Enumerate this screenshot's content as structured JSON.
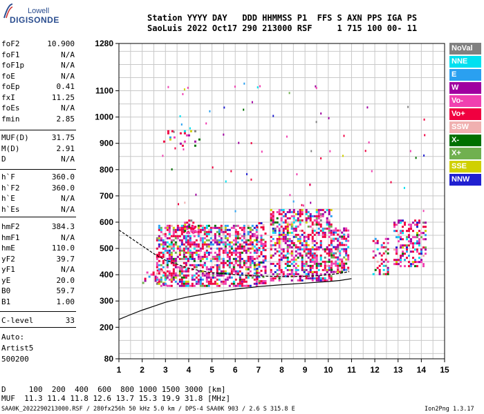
{
  "logo": {
    "line1": "Lowell",
    "line2": "DIGISONDE"
  },
  "header": {
    "line1": "Station YYYY DAY   DDD HHMMSS P1  FFS S AXN PPS IGA PS",
    "line2": "SaoLuis 2022 Oct17 290 213000 RSF     1 715 100 00- 11"
  },
  "params_1": [
    {
      "k": "foF2",
      "v": "10.900"
    },
    {
      "k": "foF1",
      "v": "N/A"
    },
    {
      "k": "foF1p",
      "v": "N/A"
    },
    {
      "k": "foE",
      "v": "N/A"
    },
    {
      "k": "foEp",
      "v": "0.41"
    },
    {
      "k": "fxI",
      "v": "11.25"
    },
    {
      "k": "foEs",
      "v": "N/A"
    },
    {
      "k": "fmin",
      "v": "2.85"
    }
  ],
  "params_2": [
    {
      "k": "MUF(D)",
      "v": "31.75"
    },
    {
      "k": "M(D)",
      "v": "2.91"
    },
    {
      "k": "D",
      "v": "N/A"
    }
  ],
  "params_3": [
    {
      "k": "h`F",
      "v": "360.0"
    },
    {
      "k": "h`F2",
      "v": "360.0"
    },
    {
      "k": "h`E",
      "v": "N/A"
    },
    {
      "k": "h`Es",
      "v": "N/A"
    }
  ],
  "params_4": [
    {
      "k": "hmF2",
      "v": "384.3"
    },
    {
      "k": "hmF1",
      "v": "N/A"
    },
    {
      "k": "hmE",
      "v": "110.0"
    },
    {
      "k": "yF2",
      "v": "39.7"
    },
    {
      "k": "yF1",
      "v": "N/A"
    },
    {
      "k": "yE",
      "v": "20.0"
    },
    {
      "k": "B0",
      "v": "59.7"
    },
    {
      "k": "B1",
      "v": "1.00"
    }
  ],
  "params_5": [
    {
      "k": "C-level",
      "v": "33"
    }
  ],
  "auto": {
    "l1": "Auto:",
    "l2": "Artist5",
    "l3": "500200"
  },
  "legend": [
    {
      "label": "NoVal",
      "color": "#808080"
    },
    {
      "label": "NNE",
      "color": "#00e0f0"
    },
    {
      "label": "E",
      "color": "#2aa0f0"
    },
    {
      "label": "W",
      "color": "#a000a0"
    },
    {
      "label": "Vo-",
      "color": "#f040b0"
    },
    {
      "label": "Vo+",
      "color": "#f00040"
    },
    {
      "label": "SSW",
      "color": "#f0b0b0"
    },
    {
      "label": "X-",
      "color": "#007000"
    },
    {
      "label": "X+",
      "color": "#70b050"
    },
    {
      "label": "SSE",
      "color": "#d0d000"
    },
    {
      "label": "NNW",
      "color": "#2020d0"
    }
  ],
  "footer": {
    "line1": "D     100  200  400  600  800 1000 1500 3000 [km]",
    "line2": "MUF  11.3 11.4 11.8 12.6 13.7 15.3 19.9 31.8 [MHz]",
    "line3": "SAA0K_2022290213000.RSF / 280fx256h 50 kHz 5.0 km / DPS-4 SAA0K 903 / 2.6 S 315.8 E",
    "version": "Ion2Png 1.3.17"
  },
  "chart_data": {
    "type": "scatter",
    "xlim": [
      1,
      15
    ],
    "ylim": [
      80,
      1280
    ],
    "x_ticks": [
      1,
      2,
      3,
      4,
      5,
      6,
      7,
      8,
      9,
      10,
      11,
      12,
      13,
      14,
      15
    ],
    "y_ticks": [
      80,
      200,
      300,
      400,
      500,
      600,
      700,
      800,
      900,
      1000,
      1100,
      1280
    ],
    "grid": true,
    "legend_placement": "right",
    "clusters": [
      {
        "x": [
          2.0,
          3.0
        ],
        "y": [
          360,
          420
        ],
        "density": 0.25
      },
      {
        "x": [
          2.6,
          6.9
        ],
        "y": [
          360,
          590
        ],
        "density": 0.55
      },
      {
        "x": [
          6.9,
          7.3
        ],
        "y": [
          370,
          600
        ],
        "density": 0.5
      },
      {
        "x": [
          7.5,
          10.1
        ],
        "y": [
          380,
          650
        ],
        "density": 0.5
      },
      {
        "x": [
          10.1,
          10.9
        ],
        "y": [
          410,
          580
        ],
        "density": 0.5
      },
      {
        "x": [
          11.9,
          12.6
        ],
        "y": [
          400,
          540
        ],
        "density": 0.35
      },
      {
        "x": [
          12.8,
          14.2
        ],
        "y": [
          430,
          610
        ],
        "density": 0.4
      },
      {
        "x": [
          2.9,
          4.5
        ],
        "y": [
          890,
          950
        ],
        "density": 0.15
      },
      {
        "x": [
          3.8,
          4.3
        ],
        "y": [
          555,
          610
        ],
        "density": 0.6
      }
    ],
    "trace_lower": {
      "x": [
        1.0,
        1.5,
        2.0,
        2.5,
        3.0,
        3.5,
        4.0,
        5.0,
        6.0,
        7.0,
        8.0,
        9.0,
        10.0,
        10.5,
        11.0
      ],
      "y": [
        230,
        248,
        265,
        280,
        295,
        306,
        316,
        332,
        345,
        355,
        362,
        368,
        374,
        378,
        385
      ]
    },
    "trace_upper": {
      "x": [
        1.0,
        1.5,
        2.0,
        2.5,
        3.0,
        3.5,
        4.0,
        4.5,
        5.0,
        5.5,
        6.0,
        6.5,
        7.0,
        7.5,
        8.0,
        8.5,
        9.0,
        9.5,
        10.0,
        10.5,
        10.9
      ],
      "y": [
        570,
        540,
        510,
        480,
        455,
        440,
        425,
        415,
        408,
        404,
        400,
        397,
        395,
        394,
        393,
        393,
        394,
        396,
        400,
        405,
        412
      ]
    }
  }
}
